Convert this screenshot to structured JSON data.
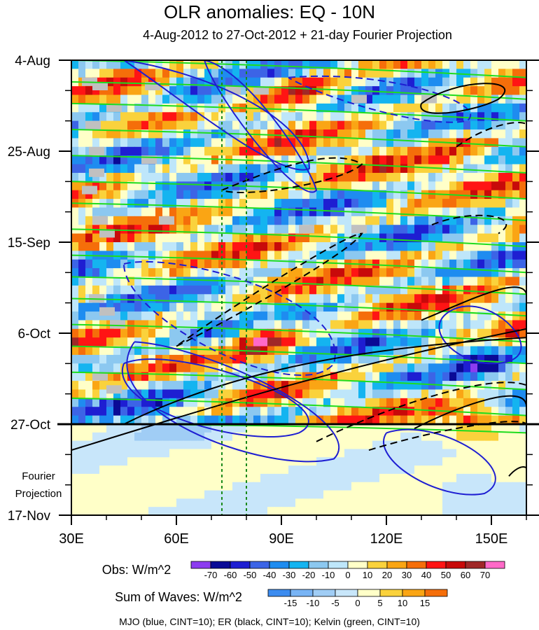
{
  "title": "OLR anomalies: EQ - 10N",
  "subtitle": "4-Aug-2012 to 27-Oct-2012 + 21-day Fourier Projection",
  "chart_data": {
    "type": "heatmap",
    "description_axis_x": "longitude",
    "x_tick_labels": [
      "30E",
      "60E",
      "90E",
      "120E",
      "150E"
    ],
    "x_tick_values": [
      30,
      60,
      90,
      120,
      150
    ],
    "xlim": [
      30,
      160
    ],
    "y_tick_labels": [
      "4-Aug",
      "25-Aug",
      "15-Sep",
      "6-Oct",
      "27-Oct",
      "17-Nov"
    ],
    "y_tick_days": [
      0,
      21,
      42,
      63,
      84,
      105
    ],
    "ylim_days": [
      0,
      105
    ],
    "observation_end_day": 84,
    "fourier_label_line1": "Fourier",
    "fourier_label_line2": "Projection",
    "reference_lines_lon": [
      73,
      80
    ],
    "obs_colorbar": {
      "label": "Obs: W/m^2",
      "levels": [
        "-70",
        "-60",
        "-50",
        "-40",
        "-30",
        "-20",
        "-10",
        "0",
        "10",
        "20",
        "30",
        "40",
        "50",
        "60",
        "70"
      ],
      "colors": [
        "#8c3cf0",
        "#0a0a96",
        "#1e1ed2",
        "#3c64e6",
        "#1e8cf0",
        "#14b4f0",
        "#8cc8f0",
        "#bee6fa",
        "#ffffc8",
        "#fad23c",
        "#faa514",
        "#f56e0a",
        "#ff1414",
        "#c80a0a",
        "#a02828",
        "#ff69c8"
      ]
    },
    "waves_colorbar": {
      "label": "Sum of Waves: W/m^2",
      "levels": [
        "-15",
        "-10",
        "-5",
        "0",
        "5",
        "10",
        "15"
      ],
      "colors": [
        "#3c8cf0",
        "#78b4f5",
        "#a0cdf5",
        "#c8e6fa",
        "#ffffc8",
        "#fad23c",
        "#faa514",
        "#f56e0a"
      ]
    },
    "contour_legend": "MJO (blue, CINT=10); ER (black, CINT=10); Kelvin (green, CINT=10)",
    "series_colors": {
      "mjo": "#1e1ed2",
      "er": "#000000",
      "kelvin": "#1edc1e"
    }
  }
}
